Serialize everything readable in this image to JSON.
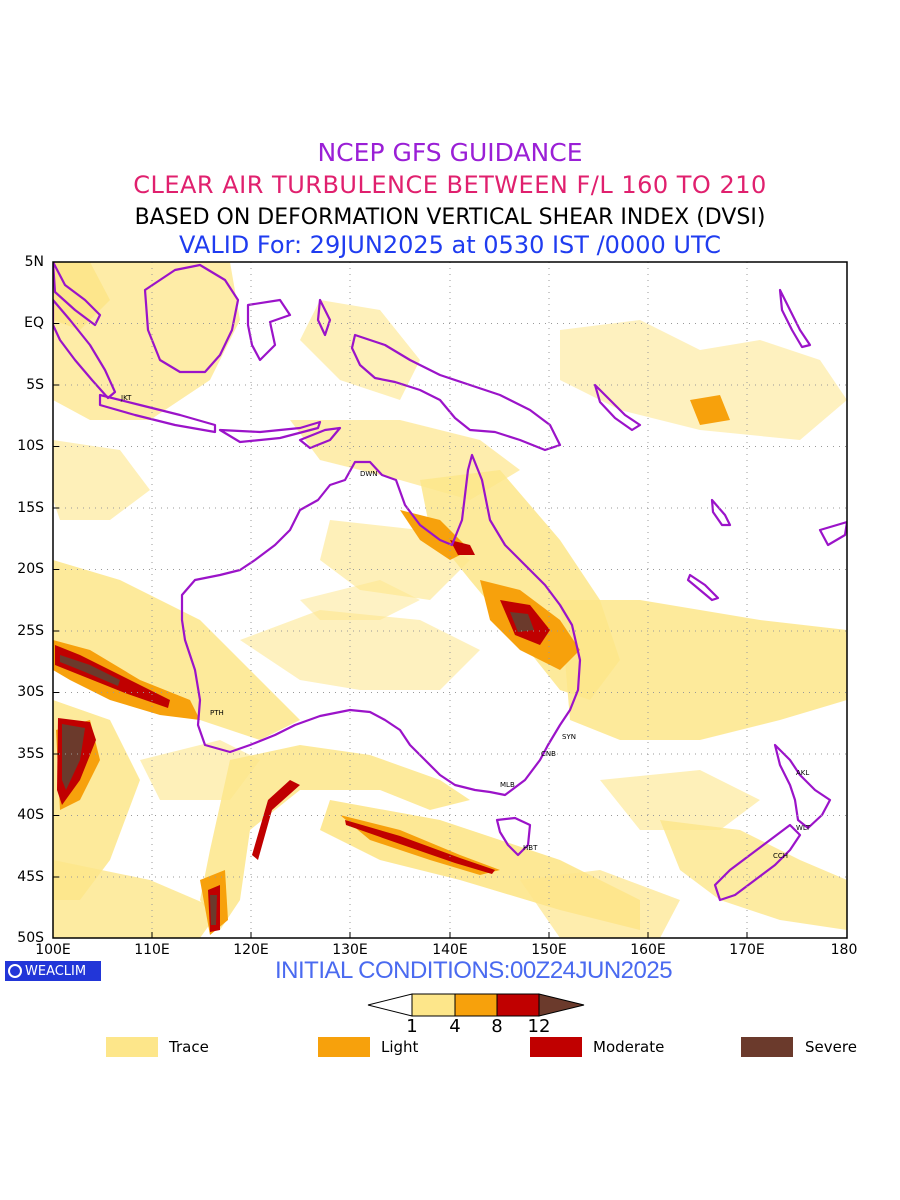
{
  "titles": {
    "line1": "NCEP GFS GUIDANCE",
    "line2": "CLEAR AIR TURBULENCE BETWEEN F/L 160 TO 210",
    "line3": "BASED ON DEFORMATION VERTICAL SHEAR INDEX (DVSI)",
    "line4": "VALID For: 29JUN2025 at 0530 IST /0000 UTC"
  },
  "lat_labels": [
    "5N",
    "EQ",
    "5S",
    "10S",
    "15S",
    "20S",
    "25S",
    "30S",
    "35S",
    "40S",
    "45S",
    "50S"
  ],
  "lon_labels": [
    "100E",
    "110E",
    "120E",
    "130E",
    "140E",
    "150E",
    "160E",
    "170E",
    "180"
  ],
  "cities": [
    "JKT",
    "DWN",
    "PTH",
    "SYN",
    "CNB",
    "MLB",
    "HBT",
    "AKL",
    "WLT",
    "CCH"
  ],
  "logo": "WEACLIM",
  "initial_conditions": "INITIAL CONDITIONS:00Z24JUN2025",
  "colorbar": {
    "ticks": [
      "1",
      "4",
      "8",
      "12"
    ]
  },
  "legend": [
    {
      "label": "Trace",
      "color": "#fde68a"
    },
    {
      "label": "Light",
      "color": "#f7a10c"
    },
    {
      "label": "Moderate",
      "color": "#c00000"
    },
    {
      "label": "Severe",
      "color": "#6b3a2c"
    }
  ],
  "colors": {
    "coastline": "#9b13c9",
    "trace": "#fde68a",
    "light": "#f7a10c",
    "moderate": "#c00000",
    "severe": "#6b3a2c"
  }
}
